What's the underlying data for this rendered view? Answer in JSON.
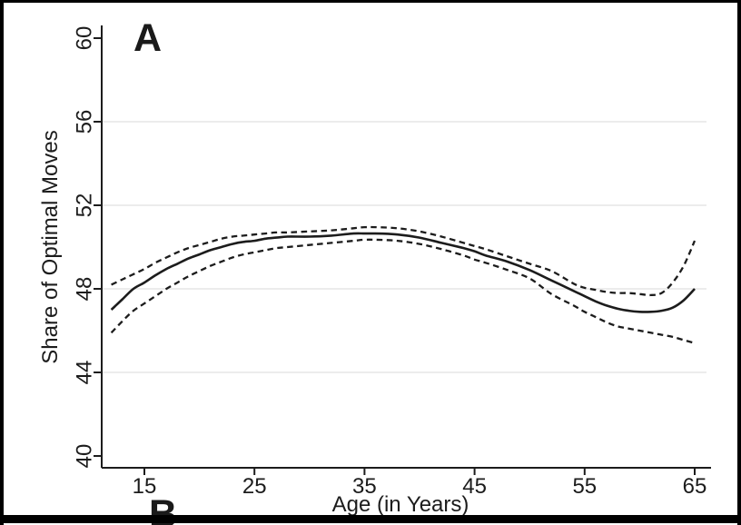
{
  "panel_labels": {
    "top": "A",
    "bottom": "B"
  },
  "chart_data": {
    "type": "line",
    "title": "",
    "xlabel": "Age (in Years)",
    "ylabel": "Share of Optimal Moves",
    "x_ticks": [
      15,
      25,
      35,
      45,
      55,
      65
    ],
    "y_ticks": [
      40,
      44,
      48,
      52,
      56,
      60
    ],
    "grid_y_values": [
      44,
      48,
      52,
      56
    ],
    "xlim": [
      11,
      66.5
    ],
    "ylim": [
      39.4,
      60.6
    ],
    "legend": "none",
    "x": [
      12,
      13,
      14,
      15,
      16,
      17,
      18,
      19,
      20,
      21,
      22,
      23,
      24,
      25,
      26,
      27,
      28,
      30,
      32,
      34,
      35,
      36,
      38,
      40,
      42,
      44,
      45,
      46,
      48,
      50,
      52,
      54,
      55,
      56,
      57,
      58,
      59,
      60,
      61,
      62,
      63,
      64,
      65
    ],
    "series": [
      {
        "name": "estimate",
        "style": "solid",
        "values": [
          47.0,
          47.5,
          48.0,
          48.3,
          48.65,
          48.95,
          49.2,
          49.45,
          49.65,
          49.85,
          50.0,
          50.15,
          50.25,
          50.3,
          50.4,
          50.45,
          50.5,
          50.5,
          50.55,
          50.65,
          50.65,
          50.65,
          50.6,
          50.45,
          50.2,
          49.95,
          49.8,
          49.6,
          49.3,
          48.9,
          48.4,
          47.9,
          47.65,
          47.4,
          47.2,
          47.05,
          46.95,
          46.9,
          46.9,
          46.95,
          47.1,
          47.45,
          48.0
        ]
      },
      {
        "name": "ci_upper",
        "style": "dashed",
        "values": [
          48.2,
          48.45,
          48.7,
          48.95,
          49.25,
          49.5,
          49.75,
          49.95,
          50.1,
          50.25,
          50.4,
          50.5,
          50.55,
          50.6,
          50.65,
          50.7,
          50.7,
          50.75,
          50.8,
          50.9,
          50.95,
          50.95,
          50.9,
          50.75,
          50.5,
          50.2,
          50.05,
          49.9,
          49.55,
          49.2,
          48.85,
          48.25,
          48.05,
          47.95,
          47.85,
          47.8,
          47.8,
          47.75,
          47.7,
          47.8,
          48.3,
          49.1,
          50.3
        ]
      },
      {
        "name": "ci_lower",
        "style": "dashed",
        "values": [
          45.9,
          46.45,
          46.95,
          47.3,
          47.65,
          48.0,
          48.3,
          48.6,
          48.85,
          49.1,
          49.3,
          49.5,
          49.65,
          49.75,
          49.85,
          49.95,
          50.0,
          50.1,
          50.2,
          50.3,
          50.35,
          50.35,
          50.3,
          50.15,
          49.9,
          49.6,
          49.4,
          49.25,
          48.9,
          48.5,
          47.75,
          47.2,
          46.9,
          46.65,
          46.4,
          46.2,
          46.1,
          46.0,
          45.9,
          45.8,
          45.7,
          45.55,
          45.4
        ]
      }
    ],
    "line_color": "#1c1c1c",
    "grid_color": "#e5e5e5",
    "background_color": "#ffffff",
    "border_color": "#000000"
  }
}
